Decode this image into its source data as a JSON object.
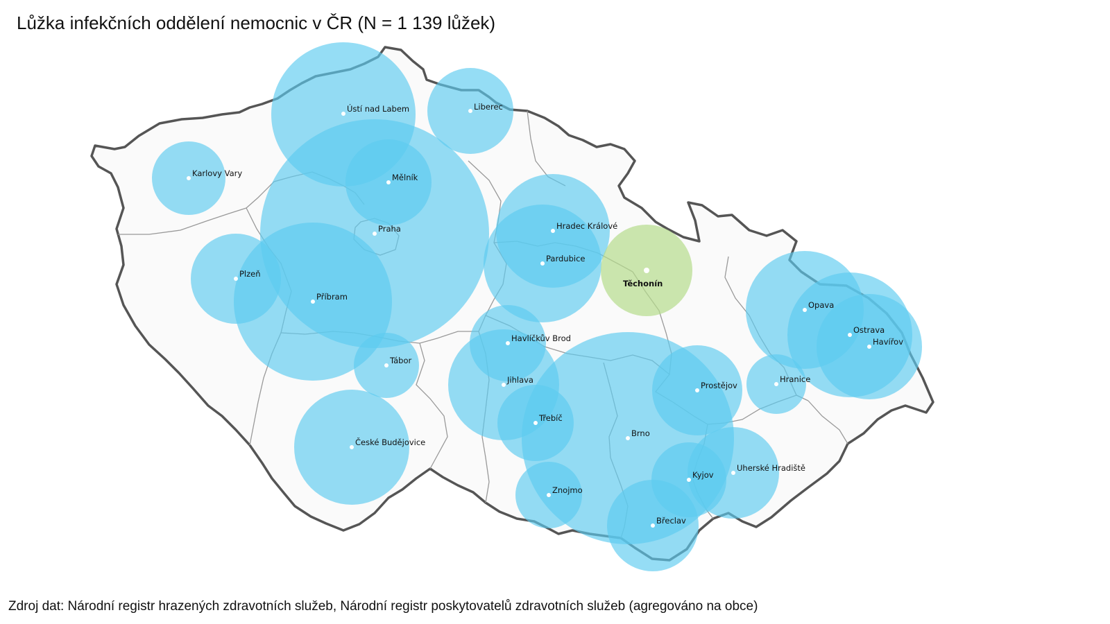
{
  "title": "Lůžka infekčních oddělení nemocnic v ČR (N = 1 139 lůžek)",
  "source": "Zdroj dat: Národní registr hrazených zdravotních služeb, Národní registr poskytovatelů zdravotních služeb (agregováno na obce)",
  "colors": {
    "bubble": "#5ccbf0",
    "highlight": "#b5dc8c",
    "border": "#555555",
    "region_border": "#999999",
    "land": "#fafafa"
  },
  "cities": [
    {
      "id": "usti-nad-labem",
      "name": "Ústí nad Labem"
    },
    {
      "id": "liberec",
      "name": "Liberec"
    },
    {
      "id": "karlovy-vary",
      "name": "Karlovy Vary"
    },
    {
      "id": "melnik",
      "name": "Mělník"
    },
    {
      "id": "praha",
      "name": "Praha"
    },
    {
      "id": "plzen",
      "name": "Plzeň"
    },
    {
      "id": "pribram",
      "name": "Příbram"
    },
    {
      "id": "tabor",
      "name": "Tábor"
    },
    {
      "id": "ceske-budejovice",
      "name": "České Budějovice"
    },
    {
      "id": "hradec-kralove",
      "name": "Hradec Králové"
    },
    {
      "id": "pardubice",
      "name": "Pardubice"
    },
    {
      "id": "techonin",
      "name": "Těchonín"
    },
    {
      "id": "havlickuv-brod",
      "name": "Havlíčkův Brod"
    },
    {
      "id": "jihlava",
      "name": "Jihlava"
    },
    {
      "id": "trebic",
      "name": "Třebíč"
    },
    {
      "id": "brno",
      "name": "Brno"
    },
    {
      "id": "znojmo",
      "name": "Znojmo"
    },
    {
      "id": "breclav",
      "name": "Břeclav"
    },
    {
      "id": "kyjov",
      "name": "Kyjov"
    },
    {
      "id": "uherske-hradiste",
      "name": "Uherské Hradiště"
    },
    {
      "id": "prostejov",
      "name": "Prostějov"
    },
    {
      "id": "hranice",
      "name": "Hranice"
    },
    {
      "id": "opava",
      "name": "Opava"
    },
    {
      "id": "ostrava",
      "name": "Ostrava"
    },
    {
      "id": "havirov",
      "name": "Havířov"
    }
  ]
}
